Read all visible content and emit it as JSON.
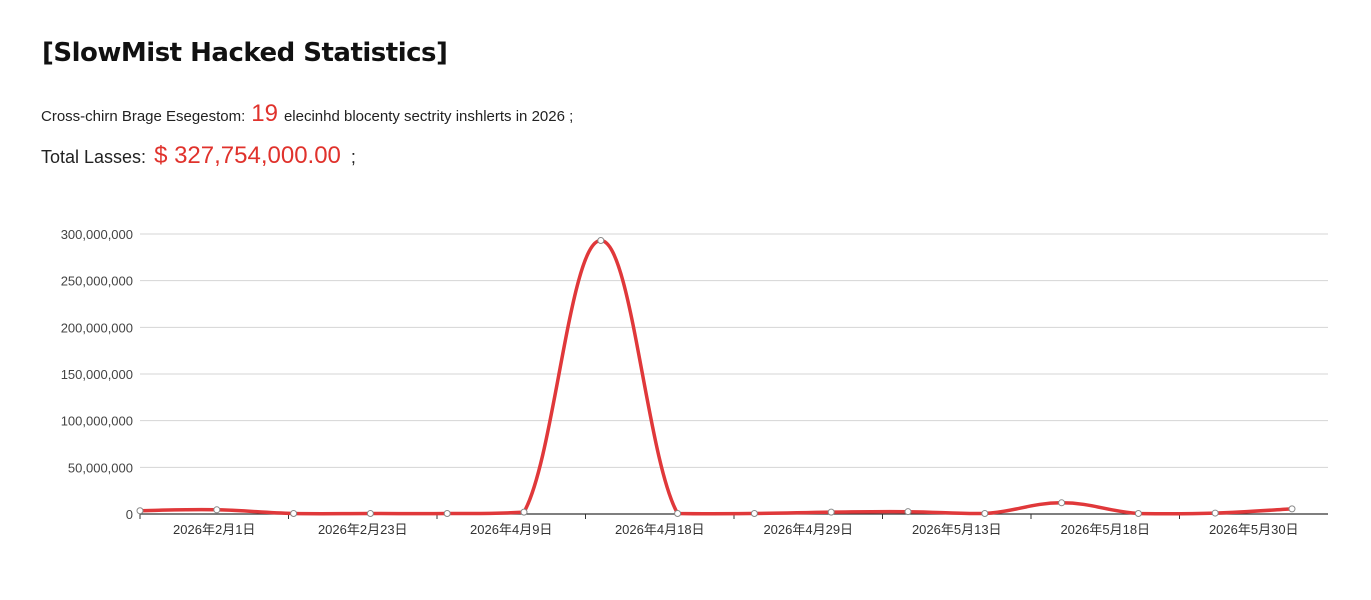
{
  "title": "[SlowMist Hacked Statistics]",
  "summary": {
    "prefix": "Cross-chirn Brage Esegestom:",
    "count": "19",
    "suffix": "elecinhd blocenty sectrity inshlerts in 2026 ;"
  },
  "losses": {
    "label": "Total Lasses:",
    "amount": "$ 327,754,000.00",
    "suffix": ";"
  },
  "chart_data": {
    "type": "line",
    "title": "",
    "xlabel": "",
    "ylabel": "",
    "ylim": [
      0,
      300000000
    ],
    "y_ticks": [
      0,
      50000000,
      100000000,
      150000000,
      200000000,
      250000000,
      300000000
    ],
    "y_tick_labels": [
      "0",
      "50,000,000",
      "100,000,000",
      "150,000,000",
      "200,000,000",
      "250,000,000",
      "300,000,000"
    ],
    "grid": true,
    "legend": "none",
    "line_color": "#e0383a",
    "x_labels": [
      "2026年2月1日",
      "2026年2月23日",
      "2026年4月9日",
      "2026年4月18日",
      "2026年4月29日",
      "2026年5月13日",
      "2026年5月18日",
      "2026年5月30日"
    ],
    "values": [
      3500000,
      4500000,
      500000,
      500000,
      500000,
      2000000,
      293000000,
      500000,
      500000,
      2000000,
      2500000,
      500000,
      12000000,
      500000,
      1000000,
      5500000
    ]
  }
}
